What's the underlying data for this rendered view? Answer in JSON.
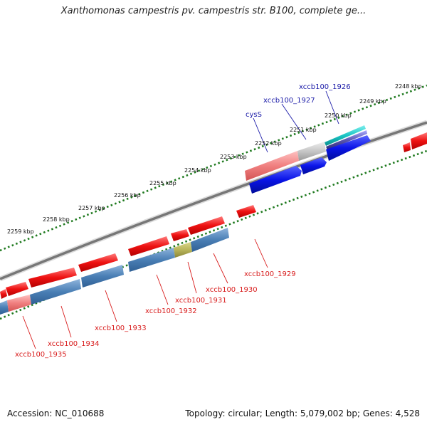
{
  "title": "Xanthomonas campestris pv. campestris str. B100, complete ge...",
  "footer": {
    "accession": "Accession: NC_010688",
    "summary": "Topology: circular; Length: 5,079,002 bp; Genes: 4,528"
  },
  "colors": {
    "forward_gene": "#ee1111",
    "reverse_gene": "#0a14e8",
    "reverse_pseudo": "#4a7fb5",
    "backbone": "#888888",
    "ticks": "#1f7a1f",
    "label_red": "#d81b1b",
    "label_blue": "#1a1aa8"
  },
  "kbp_labels": [
    "2248 kbp",
    "2249 kbp",
    "2250 kbp",
    "2251 kbp",
    "2252 kbp",
    "2253 kbp",
    "2254 kbp",
    "2255 kbp",
    "2256 kbp",
    "2257 kbp",
    "2258 kbp",
    "2259 kbp"
  ],
  "gene_labels": [
    {
      "text": "xccb100_1926",
      "color": "blue"
    },
    {
      "text": "xccb100_1927",
      "color": "blue"
    },
    {
      "text": "cysS",
      "color": "blue"
    },
    {
      "text": "xccb100_1929",
      "color": "red"
    },
    {
      "text": "xccb100_1930",
      "color": "red"
    },
    {
      "text": "xccb100_1931",
      "color": "red"
    },
    {
      "text": "xccb100_1932",
      "color": "red"
    },
    {
      "text": "xccb100_1933",
      "color": "red"
    },
    {
      "text": "xccb100_1934",
      "color": "red"
    },
    {
      "text": "xccb100_1935",
      "color": "red"
    }
  ]
}
